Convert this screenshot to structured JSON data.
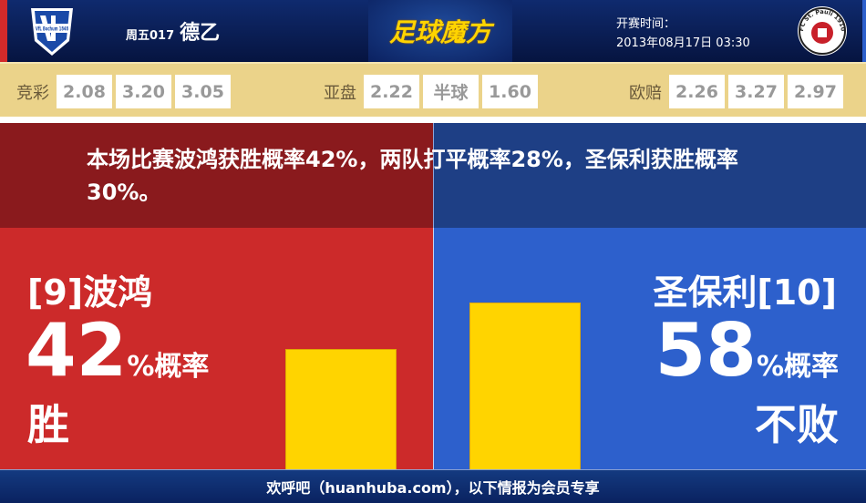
{
  "header": {
    "match_no": "周五017",
    "league": "德乙",
    "brand": "足球魔方",
    "kickoff_label": "开赛时间：",
    "kickoff_time": "2013年08月17日 03:30",
    "home_logo_text": "VfL Bochum 1848",
    "away_logo_text": "FC St. Pauli 1910"
  },
  "odds": {
    "jingcai": {
      "label": "竞彩",
      "values": [
        "2.08",
        "3.20",
        "3.05"
      ]
    },
    "yapan": {
      "label": "亚盘",
      "values": [
        "2.22",
        "半球",
        "1.60"
      ]
    },
    "oupei": {
      "label": "欧赔",
      "values": [
        "2.26",
        "3.27",
        "2.97"
      ]
    }
  },
  "summary": "本场比赛波鸿获胜概率42%，两队打平概率28%，圣保利获胜概率30%。",
  "home": {
    "team": "[9]波鸿",
    "percent": 42,
    "percent_text": "42",
    "unit": "%概率",
    "result": "胜",
    "color": "#cc2a2a"
  },
  "away": {
    "team": "圣保利[10]",
    "percent": 58,
    "percent_text": "58",
    "unit": "%概率",
    "result": "不败",
    "color": "#2d60cc"
  },
  "bar_color": "#ffd400",
  "footer": "欢呼吧（huanhuba.com），以下情报为会员专享"
}
